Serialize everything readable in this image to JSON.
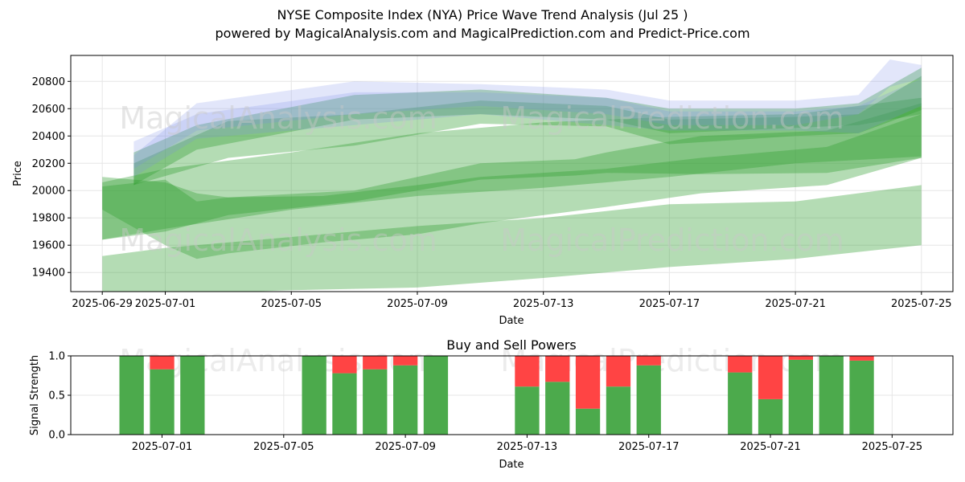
{
  "title_line1": "NYSE Composite Index (NYA) Price Wave Trend Analysis (Jul 25 )",
  "title_line2": "powered by MagicalAnalysis.com and MagicalPrediction.com and Predict-Price.com",
  "watermarks": [
    "MagicalAnalysis.com",
    "MagicalPrediction.com"
  ],
  "colors": {
    "green_band": "#2e9e2e",
    "blue_band": "#7b8be8",
    "buy": "#4caa4c",
    "sell": "#ff4444"
  },
  "chart_data": [
    {
      "type": "area",
      "xlabel": "Date",
      "ylabel": "Price",
      "x_tick_labels": [
        "2025-06-29",
        "2025-07-01",
        "2025-07-05",
        "2025-07-09",
        "2025-07-13",
        "2025-07-17",
        "2025-07-21",
        "2025-07-25"
      ],
      "y_ticks": [
        19400,
        19600,
        19800,
        20000,
        20200,
        20400,
        20600,
        20800
      ],
      "xlim": [
        "2025-06-28",
        "2025-07-26"
      ],
      "ylim": [
        19260,
        20990
      ],
      "grid": true,
      "bands": [
        {
          "color": "green",
          "x": [
            "2025-06-29",
            "2025-07-01",
            "2025-07-05",
            "2025-07-09",
            "2025-07-13",
            "2025-07-17",
            "2025-07-21",
            "2025-07-25"
          ],
          "low": [
            19200,
            19240,
            19270,
            19290,
            19360,
            19440,
            19500,
            19600
          ],
          "high": [
            19520,
            19580,
            19660,
            19740,
            19800,
            19900,
            19920,
            20040
          ]
        },
        {
          "color": "green",
          "x": [
            "2025-06-29",
            "2025-07-01",
            "2025-07-05",
            "2025-07-09",
            "2025-07-13",
            "2025-07-17",
            "2025-07-21",
            "2025-07-25"
          ],
          "low": [
            19640,
            19720,
            19860,
            19960,
            20020,
            20100,
            20200,
            20250
          ],
          "high": [
            20060,
            20160,
            20280,
            20420,
            20500,
            20540,
            20560,
            20680
          ]
        },
        {
          "color": "green",
          "x": [
            "2025-06-29",
            "2025-07-01",
            "2025-07-02",
            "2025-07-03",
            "2025-07-07",
            "2025-07-11",
            "2025-07-14",
            "2025-07-15",
            "2025-07-18",
            "2025-07-22",
            "2025-07-25"
          ],
          "low": [
            19640,
            19700,
            19760,
            19820,
            19920,
            20080,
            20110,
            20130,
            20120,
            20130,
            20240
          ],
          "high": [
            20030,
            20080,
            19920,
            19950,
            20000,
            20200,
            20230,
            20280,
            20400,
            20440,
            20640
          ]
        },
        {
          "color": "green",
          "x": [
            "2025-06-29",
            "2025-07-01",
            "2025-07-02",
            "2025-07-03",
            "2025-07-06",
            "2025-07-09",
            "2025-07-11",
            "2025-07-15",
            "2025-07-18",
            "2025-07-22",
            "2025-07-25"
          ],
          "low": [
            19860,
            19600,
            19500,
            19540,
            19620,
            19680,
            19760,
            19880,
            19980,
            20040,
            20240
          ],
          "high": [
            20100,
            20060,
            19980,
            19950,
            19960,
            20040,
            20100,
            20160,
            20240,
            20320,
            20560
          ]
        },
        {
          "color": "green",
          "x": [
            "2025-06-30",
            "2025-07-03",
            "2025-07-07",
            "2025-07-11",
            "2025-07-15",
            "2025-07-17",
            "2025-07-21",
            "2025-07-23",
            "2025-07-25"
          ],
          "low": [
            20040,
            20240,
            20330,
            20490,
            20470,
            20340,
            20400,
            20420,
            20590
          ],
          "high": [
            20200,
            20510,
            20560,
            20660,
            20620,
            20520,
            20540,
            20560,
            20840
          ]
        },
        {
          "color": "green",
          "x": [
            "2025-06-30",
            "2025-07-02",
            "2025-07-07",
            "2025-07-11",
            "2025-07-15",
            "2025-07-17",
            "2025-07-21",
            "2025-07-23",
            "2025-07-25"
          ],
          "low": [
            20040,
            20300,
            20520,
            20560,
            20520,
            20420,
            20460,
            20480,
            20560
          ],
          "high": [
            20280,
            20480,
            20700,
            20740,
            20680,
            20600,
            20600,
            20640,
            20900
          ]
        },
        {
          "color": "blue",
          "x": [
            "2025-06-30",
            "2025-07-02",
            "2025-07-07",
            "2025-07-11",
            "2025-07-15",
            "2025-07-17",
            "2025-07-21",
            "2025-07-23",
            "2025-07-25"
          ],
          "low": [
            20100,
            20380,
            20480,
            20560,
            20480,
            20440,
            20440,
            20420,
            20620
          ],
          "high": [
            20360,
            20560,
            20720,
            20720,
            20680,
            20580,
            20580,
            20620,
            20820
          ]
        },
        {
          "color": "blue",
          "x": [
            "2025-06-30",
            "2025-07-02",
            "2025-07-07",
            "2025-07-11",
            "2025-07-15",
            "2025-07-17",
            "2025-07-21",
            "2025-07-23",
            "2025-07-24",
            "2025-07-25"
          ],
          "low": [
            20160,
            20440,
            20560,
            20620,
            20560,
            20480,
            20480,
            20560,
            20760,
            20820
          ],
          "high": [
            20260,
            20640,
            20800,
            20780,
            20740,
            20660,
            20660,
            20700,
            20960,
            20920
          ]
        }
      ]
    },
    {
      "type": "bar",
      "title": "Buy and Sell Powers",
      "xlabel": "Date",
      "ylabel": "Signal Strength",
      "x_tick_labels": [
        "2025-07-01",
        "2025-07-05",
        "2025-07-09",
        "2025-07-13",
        "2025-07-17",
        "2025-07-21",
        "2025-07-25"
      ],
      "y_ticks": [
        "0.0",
        "0.5",
        "1.0"
      ],
      "ylim": [
        0,
        1
      ],
      "xlim": [
        "2025-06-28",
        "2025-07-27"
      ],
      "grid": true,
      "series": [
        {
          "name": "buy",
          "color": "green"
        },
        {
          "name": "sell",
          "color": "red"
        }
      ],
      "categories": [
        "2025-06-30",
        "2025-07-01",
        "2025-07-02",
        "2025-07-06",
        "2025-07-07",
        "2025-07-08",
        "2025-07-09",
        "2025-07-10",
        "2025-07-13",
        "2025-07-14",
        "2025-07-15",
        "2025-07-16",
        "2025-07-17",
        "2025-07-20",
        "2025-07-21",
        "2025-07-22",
        "2025-07-23",
        "2025-07-24"
      ],
      "buy": [
        1.0,
        0.83,
        1.0,
        1.0,
        0.78,
        0.83,
        0.88,
        1.0,
        0.61,
        0.67,
        0.33,
        0.61,
        0.88,
        0.79,
        0.45,
        0.95,
        1.0,
        0.94
      ],
      "sell": [
        0.0,
        0.17,
        0.0,
        0.0,
        0.22,
        0.17,
        0.12,
        0.0,
        0.39,
        0.33,
        0.67,
        0.39,
        0.12,
        0.21,
        0.55,
        0.05,
        0.0,
        0.06
      ]
    }
  ]
}
